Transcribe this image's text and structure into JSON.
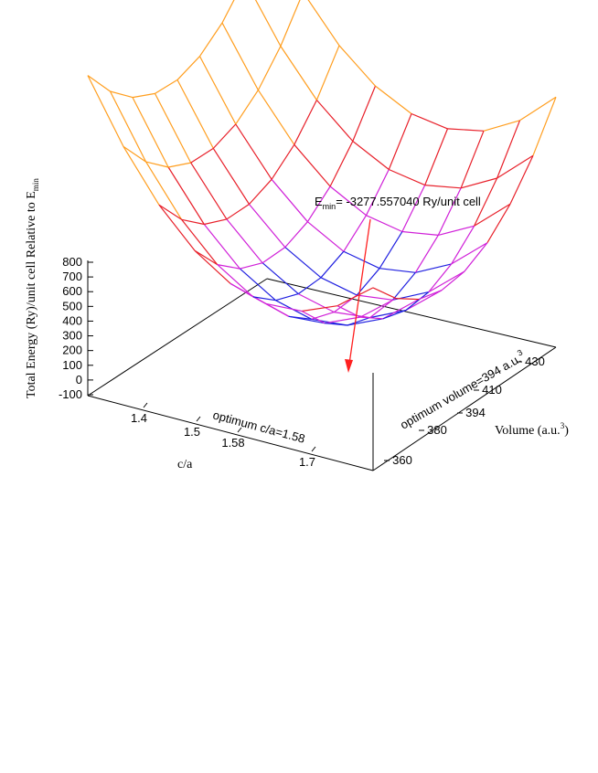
{
  "chart_data": {
    "type": "surface",
    "zlabel_main": "Total Energy (Ry)/unit cell Relative to E",
    "zlabel_sub": "min",
    "xlabel": "c/a",
    "ylabel_main": "Volume (a.u.",
    "ylabel_sup": "3",
    "ylabel_end": ")",
    "z_ticks": [
      "800",
      "700",
      "600",
      "500",
      "400",
      "300",
      "200",
      "100",
      "0",
      "-100"
    ],
    "x_ticks": [
      "1.4",
      "1.5",
      "1.58",
      "1.7"
    ],
    "y_ticks": [
      "360",
      "380",
      "394",
      "410",
      "430"
    ],
    "annotation_emin_main": "E",
    "annotation_emin_sub": "min",
    "annotation_emin_rest": "= -3277.557040 Ry/unit cell",
    "annotation_ca": "optimum c/a=1.58",
    "annotation_vol_main": "optimum volume=394 a.u.",
    "annotation_vol_sup": "3",
    "grid_shape": [
      9,
      9
    ],
    "colors": {
      "high": "#ff9e1f",
      "upper": "#e8202a",
      "mid": "#d020d8",
      "low": "#2020e0",
      "arrow": "#ff2020"
    }
  }
}
